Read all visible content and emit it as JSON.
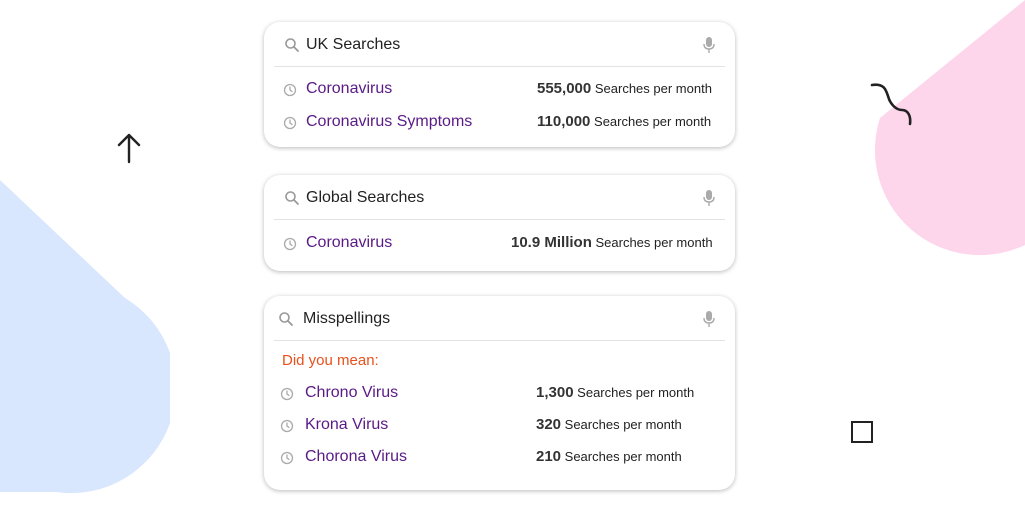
{
  "colors": {
    "link": "#5a1a86",
    "suggestion": "#e8501d",
    "blue_blob": "#d8e7fd",
    "pink_blob": "#fdd6ec"
  },
  "decorations": [
    "up-arrow-icon",
    "squiggle-icon",
    "square-outline-icon"
  ],
  "cards": [
    {
      "query": "UK Searches",
      "rows": [
        {
          "term": "Coronavirus",
          "count": "555,000",
          "unit": "Searches per month"
        },
        {
          "term": "Coronavirus Symptoms",
          "count": "110,000",
          "unit": "Searches per month"
        }
      ]
    },
    {
      "query": "Global Searches",
      "rows": [
        {
          "term": "Coronavirus",
          "count": "10.9 Million",
          "unit": "Searches per month"
        }
      ]
    },
    {
      "query": "Misspellings",
      "suggestion_label": "Did you mean:",
      "rows": [
        {
          "term": "Chrono Virus",
          "count": "1,300",
          "unit": "Searches per month"
        },
        {
          "term": "Krona Virus",
          "count": "320",
          "unit": "Searches per month"
        },
        {
          "term": "Chorona Virus",
          "count": "210",
          "unit": "Searches per month"
        }
      ]
    }
  ]
}
